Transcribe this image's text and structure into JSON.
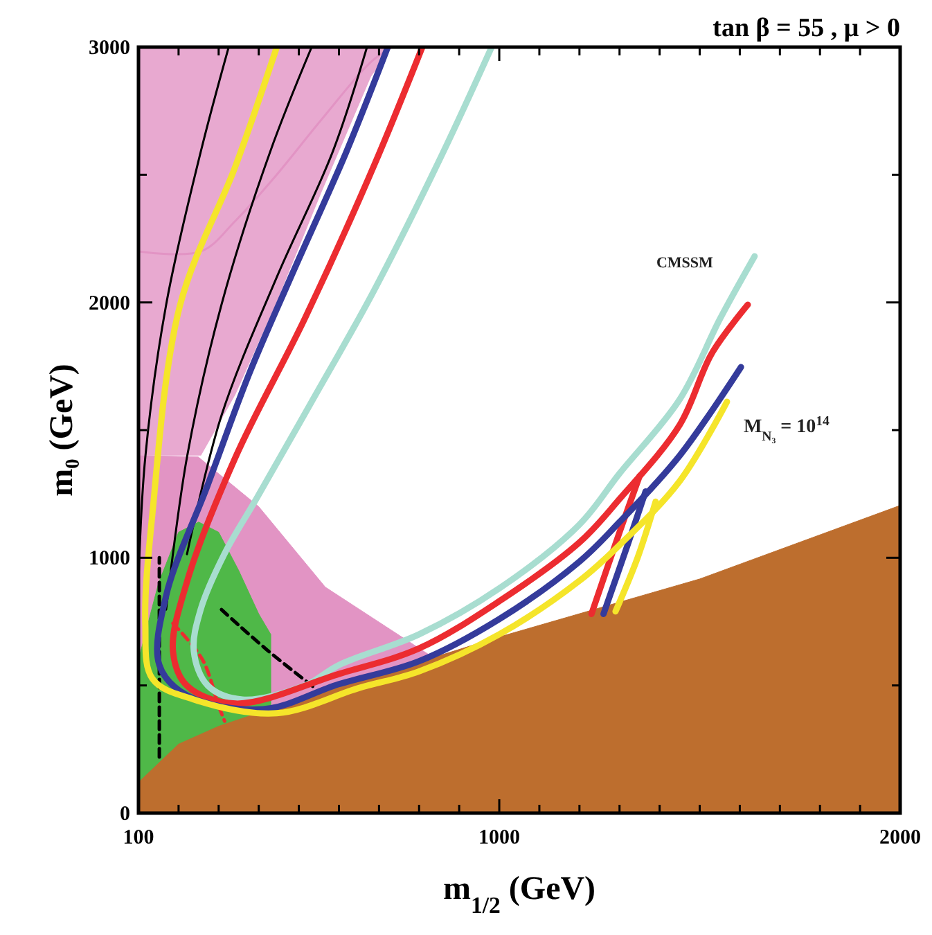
{
  "chart_data": {
    "type": "line",
    "title": "tan β = 55 ,  μ > 0",
    "xlabel": "m$_{1/2}$ (GeV)",
    "ylabel": "m₀ (GeV)",
    "xlim": [
      100,
      2000
    ],
    "ylim": [
      0,
      3000
    ],
    "xticks": [
      100,
      {
        "value": 200,
        "label": null
      },
      {
        "value": 300,
        "label": null
      },
      {
        "value": 400,
        "label": null
      },
      {
        "value": 500,
        "label": null
      },
      {
        "value": 600,
        "label": null
      },
      {
        "value": 700,
        "label": null
      },
      {
        "value": 800,
        "label": null
      },
      {
        "value": 900,
        "label": null
      },
      1000,
      {
        "value": 1100,
        "label": null
      },
      {
        "value": 1200,
        "label": null
      },
      {
        "value": 1300,
        "label": null
      },
      {
        "value": 1400,
        "label": null
      },
      {
        "value": 1500,
        "label": null
      },
      {
        "value": 1600,
        "label": null
      },
      {
        "value": 1700,
        "label": null
      },
      {
        "value": 1800,
        "label": null
      },
      {
        "value": 1900,
        "label": null
      },
      2000
    ],
    "yticks": [
      0,
      {
        "value": 500,
        "label": null
      },
      1000,
      {
        "value": 1500,
        "label": null
      },
      2000,
      {
        "value": 2500,
        "label": null
      },
      3000
    ],
    "series": [
      {
        "color": "#e294c4",
        "line_style": "solid",
        "x": [
          100,
          256,
          342,
          442,
          556,
          680,
          732
        ],
        "values": [
          2200,
          2200,
          2320,
          2495,
          2715,
          2942,
          3000
        ],
        "lower": [
          1400,
          1400,
          1640,
          1991,
          2430,
          2884,
          3000
        ],
        "upper": [
          3000,
          3000,
          3000,
          3000,
          3000,
          3000,
          3000
        ]
      },
      {
        "type": "area",
        "color": "#e294c4",
        "x": [
          100,
          249,
          400,
          566,
          825
        ],
        "values": [
          1400,
          1395,
          1200,
          885,
          620
        ]
      },
      {
        "type": "area",
        "color": "#4fb848",
        "x": [
          100,
          150,
          200,
          250,
          300,
          350,
          400,
          430
        ],
        "values": [
          600,
          900,
          1100,
          1140,
          1100,
          950,
          780,
          700
        ]
      },
      {
        "type": "area",
        "color": "#bd6e2e",
        "x": [
          100,
          200,
          300,
          500,
          1000,
          1500,
          2000
        ],
        "values": [
          120,
          270,
          340,
          445,
          690,
          917,
          1205
        ]
      },
      {
        "color": "#000000",
        "line_style": "solid",
        "x": [
          100,
          117,
          169,
          255,
          325
        ],
        "values": [
          906,
          1394,
          1991,
          2588,
          3000
        ]
      },
      {
        "color": "#000000",
        "line_style": "solid",
        "x": [
          169,
          221,
          307,
          428,
          532
        ],
        "values": [
          797,
          1394,
          1991,
          2588,
          3000
        ]
      },
      {
        "color": "#000000",
        "line_style": "solid",
        "x": [
          221,
          307,
          445,
          584,
          670
        ],
        "values": [
          1014,
          1557,
          2099,
          2588,
          3000
        ]
      },
      {
        "color": "#000000",
        "line_style": "dashed",
        "x": [
          152,
          152
        ],
        "values": [
          220,
          1000
        ]
      },
      {
        "color": "#ec2c30",
        "line_style": "dashed",
        "x": [
          186,
          260,
          300,
          315
        ],
        "values": [
          743,
          600,
          420,
          360
        ]
      },
      {
        "color": "#000000",
        "line_style": "dashed",
        "x": [
          307,
          420,
          540
        ],
        "values": [
          797,
          640,
          490
        ]
      },
      {
        "color": "#a8ddd0",
        "x": [
          981,
          860,
          687,
          532,
          394,
          314,
          255,
          238,
          273,
          359,
          515,
          600,
          800,
          1000,
          1200,
          1300,
          1450,
          1551,
          1637
        ],
        "values": [
          3000,
          2588,
          2045,
          1611,
          1231,
          1014,
          797,
          635,
          499,
          445,
          500,
          580,
          700,
          880,
          1130,
          1330,
          1620,
          1937,
          2181
        ]
      },
      {
        "color": "#ec2c30",
        "x": [
          808,
          687,
          515,
          342,
          221,
          186,
          221,
          342,
          600,
          800,
          1000,
          1200,
          1300,
          1450,
          1530,
          1620
        ],
        "values": [
          3000,
          2534,
          1937,
          1394,
          906,
          635,
          499,
          429,
          545,
          645,
          830,
          1060,
          1230,
          1520,
          1800,
          1991
        ]
      },
      {
        "color": "#ec2c30",
        "x": [
          1230,
          1300,
          1350
        ],
        "values": [
          780,
          1100,
          1320
        ]
      },
      {
        "color": "#343b9b",
        "x": [
          722,
          618,
          480,
          376,
          273,
          169,
          152,
          221,
          411,
          600,
          800,
          1000,
          1200,
          1300,
          1450,
          1603
        ],
        "values": [
          3000,
          2588,
          2099,
          1720,
          1286,
          852,
          580,
          461,
          407,
          505,
          595,
          760,
          985,
          1140,
          1400,
          1747
        ]
      },
      {
        "color": "#343b9b",
        "x": [
          1260,
          1320,
          1365
        ],
        "values": [
          780,
          1050,
          1260
        ]
      },
      {
        "color": "#f5e52a",
        "x": [
          445,
          342,
          204,
          135,
          117,
          135,
          238,
          445,
          650,
          800,
          1000,
          1200,
          1300,
          1450,
          1568
        ],
        "values": [
          3000,
          2534,
          1991,
          1177,
          743,
          526,
          445,
          391,
          490,
          555,
          700,
          910,
          1050,
          1300,
          1611
        ]
      },
      {
        "color": "#f5e52a",
        "x": [
          1290,
          1345,
          1390
        ],
        "values": [
          790,
          1000,
          1220
        ]
      }
    ],
    "annotations": [
      {
        "text": "CMSSM",
        "x": 1637,
        "y": 2181
      },
      {
        "text": "M$_{N₃}$ = 10$^{14}$",
        "x": 1568,
        "y": 1611
      }
    ]
  }
}
